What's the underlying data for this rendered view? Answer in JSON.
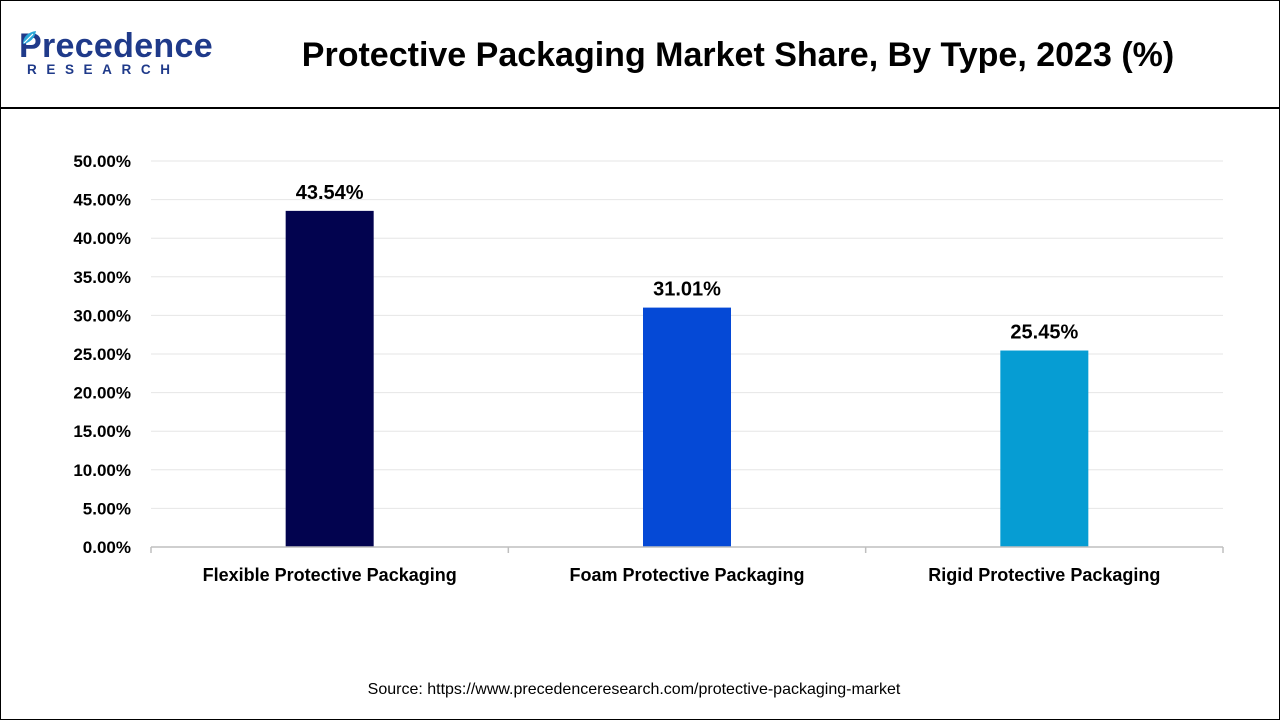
{
  "header": {
    "logo_word": "Precedence",
    "logo_sub": "RESEARCH",
    "title": "Protective Packaging Market Share, By Type, 2023 (%)"
  },
  "source": "Source: https://www.precedenceresearch.com/protective-packaging-market",
  "colors": {
    "brand": "#1f3a8a",
    "gridline": "#e6e6e6",
    "axis": "#bfbfbf"
  },
  "chart_data": {
    "type": "bar",
    "title": "Protective Packaging Market Share, By Type, 2023 (%)",
    "xlabel": "",
    "ylabel": "",
    "ylim": [
      0,
      50
    ],
    "yticks": [
      0,
      5,
      10,
      15,
      20,
      25,
      30,
      35,
      40,
      45,
      50
    ],
    "ytick_labels": [
      "0.00%",
      "5.00%",
      "10.00%",
      "15.00%",
      "20.00%",
      "25.00%",
      "30.00%",
      "35.00%",
      "40.00%",
      "45.00%",
      "50.00%"
    ],
    "grid": true,
    "legend": "none",
    "categories": [
      "Flexible Protective Packaging",
      "Foam Protective Packaging",
      "Rigid Protective Packaging"
    ],
    "values": [
      43.54,
      31.01,
      25.45
    ],
    "value_labels": [
      "43.54%",
      "31.01%",
      "25.45%"
    ],
    "bar_colors": [
      "#02034f",
      "#0549d6",
      "#069dd3"
    ]
  }
}
